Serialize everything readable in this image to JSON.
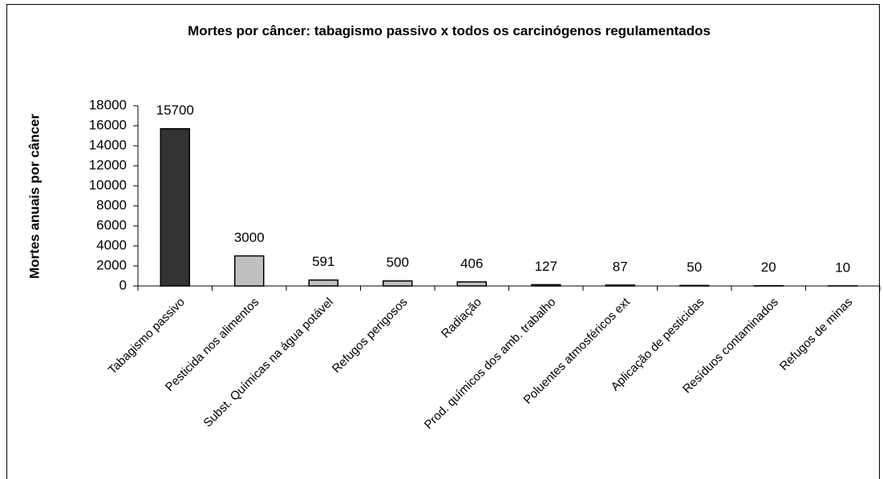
{
  "chart_data": {
    "type": "bar",
    "title": "Mortes por câncer: tabagismo passivo x todos os carcinógenos regulamentados",
    "y_label": "Mortes anuais por câncer",
    "categories": [
      "Tabagismo passivo",
      "Pesticida nos alimentos",
      "Subst. Químicas na água potável",
      "Refugos perigosos",
      "Radiação",
      "Prod. químicos dos amb. trabalho",
      "Poluentes atmosféricos ext",
      "Aplicação de pesticidas",
      "Resíduos contaminados",
      "Refugos de minas"
    ],
    "values": [
      15700,
      3000,
      591,
      500,
      406,
      127,
      87,
      50,
      20,
      10
    ],
    "colors": [
      "#333333",
      "#c0c0c0",
      "#c0c0c0",
      "#c0c0c0",
      "#c0c0c0",
      "#c0c0c0",
      "#c0c0c0",
      "#c0c0c0",
      "#c0c0c0",
      "#c0c0c0"
    ],
    "ylim": [
      0,
      18000
    ],
    "yticks": [
      0,
      2000,
      4000,
      6000,
      8000,
      10000,
      12000,
      14000,
      16000,
      18000
    ],
    "grid": false
  }
}
